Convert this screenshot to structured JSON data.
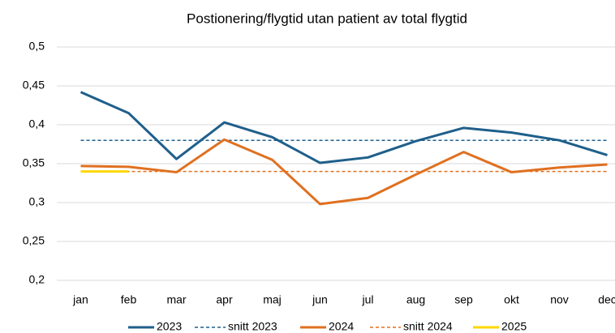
{
  "chart_data": {
    "type": "line",
    "title": "Postionering/flygtid utan patient av total flygtid",
    "categories": [
      "jan",
      "feb",
      "mar",
      "apr",
      "maj",
      "jun",
      "jul",
      "aug",
      "sep",
      "okt",
      "nov",
      "dec"
    ],
    "series": [
      {
        "name": "2023",
        "color": "#1f5f8b",
        "dashed": false,
        "values": [
          0.442,
          0.415,
          0.356,
          0.403,
          0.384,
          0.351,
          0.358,
          0.379,
          0.396,
          0.39,
          0.38,
          0.361
        ]
      },
      {
        "name": "snitt 2023",
        "color": "#1f5f8b",
        "dashed": true,
        "values": [
          0.38,
          0.38,
          0.38,
          0.38,
          0.38,
          0.38,
          0.38,
          0.38,
          0.38,
          0.38,
          0.38,
          0.38
        ]
      },
      {
        "name": "2024",
        "color": "#e07020",
        "dashed": false,
        "values": [
          0.347,
          0.346,
          0.339,
          0.381,
          0.355,
          0.298,
          0.306,
          0.336,
          0.365,
          0.339,
          0.345,
          0.349
        ]
      },
      {
        "name": "snitt 2024",
        "color": "#e07020",
        "dashed": true,
        "values": [
          0.34,
          0.34,
          0.34,
          0.34,
          0.34,
          0.34,
          0.34,
          0.34,
          0.34,
          0.34,
          0.34,
          0.34
        ]
      },
      {
        "name": "2025",
        "color": "#ffd700",
        "dashed": false,
        "values": [
          0.34,
          0.34,
          null,
          null,
          null,
          null,
          null,
          null,
          null,
          null,
          null,
          null
        ]
      }
    ],
    "ylim": [
      0.2,
      0.5
    ],
    "yticks": [
      {
        "value": 0.2,
        "label": "0,2"
      },
      {
        "value": 0.25,
        "label": "0,25"
      },
      {
        "value": 0.3,
        "label": "0,3"
      },
      {
        "value": 0.35,
        "label": "0,35"
      },
      {
        "value": 0.4,
        "label": "0,4"
      },
      {
        "value": 0.45,
        "label": "0,45"
      },
      {
        "value": 0.5,
        "label": "0,5"
      }
    ],
    "grid": true,
    "legend": "bottom"
  }
}
